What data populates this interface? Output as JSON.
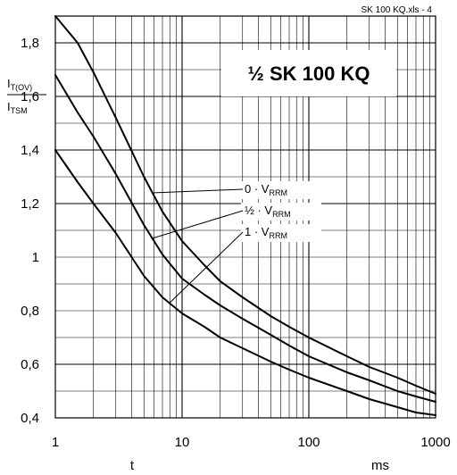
{
  "chart_data": {
    "type": "line",
    "title": "½ SK 100 KQ",
    "file_note": "SK 100 KQ.xls - 4",
    "x_scale": "log",
    "xlim": [
      1,
      1000
    ],
    "ylim": [
      0.4,
      1.9
    ],
    "x_ticks": [
      "1",
      "10",
      "100",
      "1000"
    ],
    "y_ticks": [
      "0,4",
      "0,6",
      "0,8",
      "1",
      "1,2",
      "1,4",
      "1,6",
      "1,8"
    ],
    "xlabel": "t",
    "x_unit": "ms",
    "ylabel": {
      "numerator_main": "I",
      "numerator_sub": "T(OV)",
      "denominator_main": "I",
      "denominator_sub": "TSM"
    },
    "grid": true,
    "series": [
      {
        "name": "0 · V_RRM",
        "label_main": "0 · V",
        "label_sub": "RRM",
        "points": [
          [
            1,
            1.96
          ],
          [
            1.5,
            1.8
          ],
          [
            2,
            1.69
          ],
          [
            3,
            1.52
          ],
          [
            5,
            1.3
          ],
          [
            7,
            1.17
          ],
          [
            10,
            1.06
          ],
          [
            15,
            0.97
          ],
          [
            20,
            0.91
          ],
          [
            30,
            0.85
          ],
          [
            50,
            0.78
          ],
          [
            70,
            0.74
          ],
          [
            100,
            0.7
          ],
          [
            200,
            0.63
          ],
          [
            300,
            0.59
          ],
          [
            500,
            0.55
          ],
          [
            700,
            0.52
          ],
          [
            1000,
            0.49
          ]
        ]
      },
      {
        "name": "½ · V_RRM",
        "label_main": "½ · V",
        "label_sub": "RRM",
        "points": [
          [
            1,
            1.68
          ],
          [
            1.5,
            1.54
          ],
          [
            2,
            1.45
          ],
          [
            3,
            1.31
          ],
          [
            5,
            1.12
          ],
          [
            7,
            1.01
          ],
          [
            10,
            0.92
          ],
          [
            15,
            0.86
          ],
          [
            20,
            0.82
          ],
          [
            30,
            0.77
          ],
          [
            50,
            0.71
          ],
          [
            70,
            0.67
          ],
          [
            100,
            0.63
          ],
          [
            200,
            0.57
          ],
          [
            300,
            0.54
          ],
          [
            500,
            0.5
          ],
          [
            700,
            0.48
          ],
          [
            1000,
            0.46
          ]
        ]
      },
      {
        "name": "1 · V_RRM",
        "label_main": "1 · V",
        "label_sub": "RRM",
        "points": [
          [
            1,
            1.4
          ],
          [
            1.5,
            1.28
          ],
          [
            2,
            1.2
          ],
          [
            3,
            1.09
          ],
          [
            5,
            0.93
          ],
          [
            7,
            0.85
          ],
          [
            10,
            0.79
          ],
          [
            15,
            0.74
          ],
          [
            20,
            0.7
          ],
          [
            30,
            0.66
          ],
          [
            50,
            0.61
          ],
          [
            70,
            0.58
          ],
          [
            100,
            0.55
          ],
          [
            200,
            0.5
          ],
          [
            300,
            0.47
          ],
          [
            500,
            0.44
          ],
          [
            700,
            0.42
          ],
          [
            1000,
            0.41
          ]
        ]
      }
    ],
    "annotations": [
      {
        "series": 0,
        "text_x": 270,
        "text_y": 1.42,
        "point_x": 5.8,
        "point_y": 1.24
      },
      {
        "series": 1,
        "text_x": 270,
        "text_y": 1.34,
        "point_x": 5.8,
        "point_y": 1.07
      },
      {
        "series": 2,
        "text_x": 270,
        "text_y": 1.24,
        "point_x": 8.0,
        "point_y": 0.83
      }
    ]
  },
  "colors": {
    "background": "#ffffff",
    "line": "#000000",
    "grid": "#000000"
  }
}
